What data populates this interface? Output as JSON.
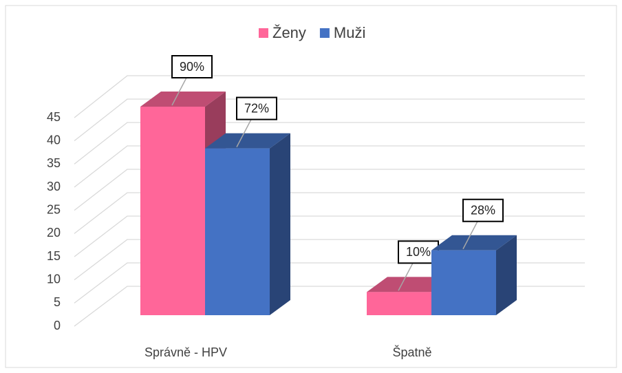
{
  "chart_data": {
    "type": "bar3d",
    "categories": [
      "Správně - HPV",
      "Špatně"
    ],
    "series": [
      {
        "name": "Ženy",
        "color": "#ff6699",
        "values": [
          45,
          5
        ],
        "data_labels": [
          "90%",
          "10%"
        ]
      },
      {
        "name": "Muži",
        "color": "#4472c4",
        "values": [
          36,
          14
        ],
        "data_labels": [
          "72%",
          "28%"
        ]
      }
    ],
    "ylim": [
      0,
      45
    ],
    "yticks": [
      0,
      5,
      10,
      15,
      20,
      25,
      30,
      35,
      40,
      45
    ],
    "grid": true,
    "legend": "top"
  }
}
